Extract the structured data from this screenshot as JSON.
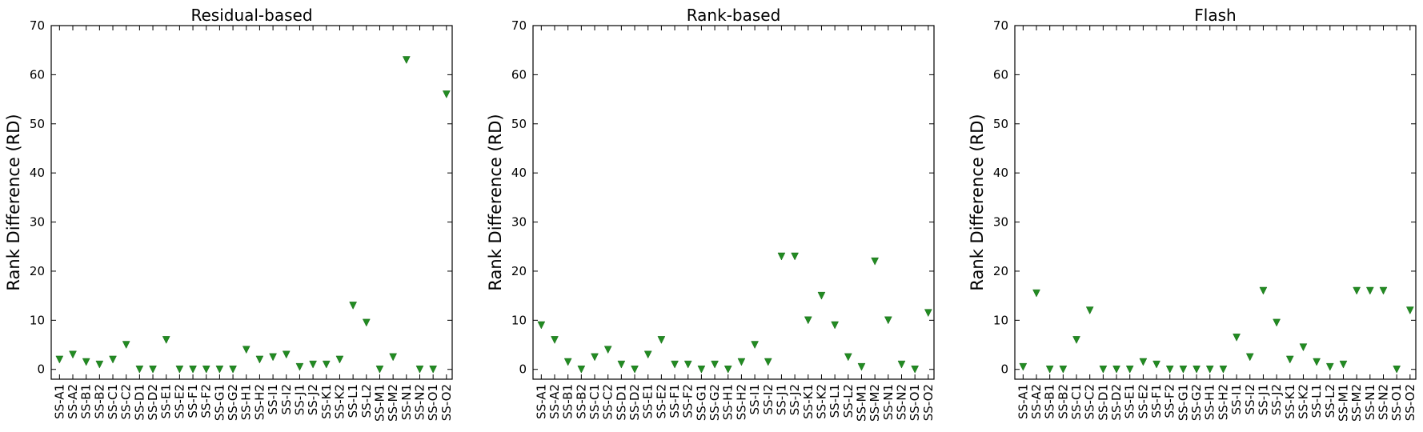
{
  "chart_data": [
    {
      "type": "scatter",
      "title": "Residual-based",
      "xlabel": "",
      "ylabel": "Rank Difference (RD)",
      "ylim": [
        -2,
        70
      ],
      "yticks": [
        0,
        10,
        20,
        30,
        40,
        50,
        60,
        70
      ],
      "marker": "triangle-down",
      "color": "#228b22",
      "categories": [
        "SS-A1",
        "SS-A2",
        "SS-B1",
        "SS-B2",
        "SS-C1",
        "SS-C2",
        "SS-D1",
        "SS-D2",
        "SS-E1",
        "SS-E2",
        "SS-F1",
        "SS-F2",
        "SS-G1",
        "SS-G2",
        "SS-H1",
        "SS-H2",
        "SS-I1",
        "SS-I2",
        "SS-J1",
        "SS-J2",
        "SS-K1",
        "SS-K2",
        "SS-L1",
        "SS-L2",
        "SS-M1",
        "SS-M2",
        "SS-N1",
        "SS-N2",
        "SS-O1",
        "SS-O2"
      ],
      "values": [
        2,
        3,
        1.5,
        1,
        2,
        5,
        0,
        0,
        6,
        0,
        0,
        0,
        0,
        0,
        4,
        2,
        2.5,
        3,
        0.5,
        1,
        1,
        2,
        13,
        9.5,
        0,
        2.5,
        63,
        0,
        0,
        56
      ]
    },
    {
      "type": "scatter",
      "title": "Rank-based",
      "xlabel": "",
      "ylabel": "Rank Difference (RD)",
      "ylim": [
        -2,
        70
      ],
      "yticks": [
        0,
        10,
        20,
        30,
        40,
        50,
        60,
        70
      ],
      "marker": "triangle-down",
      "color": "#228b22",
      "categories": [
        "SS-A1",
        "SS-A2",
        "SS-B1",
        "SS-B2",
        "SS-C1",
        "SS-C2",
        "SS-D1",
        "SS-D2",
        "SS-E1",
        "SS-E2",
        "SS-F1",
        "SS-F2",
        "SS-G1",
        "SS-G2",
        "SS-H1",
        "SS-H2",
        "SS-I1",
        "SS-I2",
        "SS-J1",
        "SS-J2",
        "SS-K1",
        "SS-K2",
        "SS-L1",
        "SS-L2",
        "SS-M1",
        "SS-M2",
        "SS-N1",
        "SS-N2",
        "SS-O1",
        "SS-O2"
      ],
      "values": [
        9,
        6,
        1.5,
        0,
        2.5,
        4,
        1,
        0,
        3,
        6,
        1,
        1,
        0,
        1,
        0,
        1.5,
        5,
        1.5,
        23,
        23,
        10,
        15,
        9,
        2.5,
        0.5,
        22,
        10,
        1,
        0,
        11.5
      ]
    },
    {
      "type": "scatter",
      "title": "Flash",
      "xlabel": "",
      "ylabel": "Rank Difference (RD)",
      "ylim": [
        -2,
        70
      ],
      "yticks": [
        0,
        10,
        20,
        30,
        40,
        50,
        60,
        70
      ],
      "marker": "triangle-down",
      "color": "#228b22",
      "categories": [
        "SS-A1",
        "SS-A2",
        "SS-B1",
        "SS-B2",
        "SS-C1",
        "SS-C2",
        "SS-D1",
        "SS-D2",
        "SS-E1",
        "SS-E2",
        "SS-F1",
        "SS-F2",
        "SS-G1",
        "SS-G2",
        "SS-H1",
        "SS-H2",
        "SS-I1",
        "SS-I2",
        "SS-J1",
        "SS-J2",
        "SS-K1",
        "SS-K2",
        "SS-L1",
        "SS-L2",
        "SS-M1",
        "SS-M2",
        "SS-N1",
        "SS-N2",
        "SS-O1",
        "SS-O2"
      ],
      "values": [
        0.5,
        15.5,
        0,
        0,
        6,
        12,
        0,
        0,
        0,
        1.5,
        1,
        0,
        0,
        0,
        0,
        0,
        6.5,
        2.5,
        16,
        9.5,
        2,
        4.5,
        1.5,
        0.5,
        1,
        16,
        16,
        16,
        0,
        12
      ]
    }
  ]
}
